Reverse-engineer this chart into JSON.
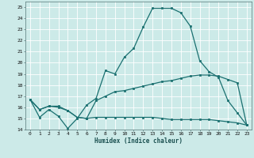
{
  "title": "",
  "xlabel": "Humidex (Indice chaleur)",
  "ylabel": "",
  "xlim": [
    -0.5,
    23.5
  ],
  "ylim": [
    14,
    25.5
  ],
  "yticks": [
    14,
    15,
    16,
    17,
    18,
    19,
    20,
    21,
    22,
    23,
    24,
    25
  ],
  "xticks": [
    0,
    1,
    2,
    3,
    4,
    5,
    6,
    7,
    8,
    9,
    10,
    11,
    12,
    13,
    14,
    15,
    16,
    17,
    18,
    19,
    20,
    21,
    22,
    23
  ],
  "bg_color": "#cceae8",
  "grid_color": "#ffffff",
  "line_color": "#1a7070",
  "line1": [
    16.7,
    15.1,
    15.8,
    15.2,
    14.1,
    15.0,
    16.2,
    16.8,
    19.3,
    19.0,
    20.5,
    21.3,
    23.2,
    24.9,
    24.9,
    24.9,
    24.5,
    23.3,
    20.2,
    19.2,
    18.7,
    16.6,
    15.5,
    14.4
  ],
  "line2": [
    16.7,
    15.8,
    16.1,
    16.1,
    15.7,
    15.1,
    15.0,
    16.6,
    17.0,
    17.4,
    17.5,
    17.7,
    17.9,
    18.1,
    18.3,
    18.4,
    18.6,
    18.8,
    18.9,
    18.9,
    18.8,
    18.5,
    18.2,
    14.4
  ],
  "line3": [
    16.7,
    15.8,
    16.1,
    16.0,
    15.7,
    15.1,
    15.0,
    15.1,
    15.1,
    15.1,
    15.1,
    15.1,
    15.1,
    15.1,
    15.0,
    14.9,
    14.9,
    14.9,
    14.9,
    14.9,
    14.8,
    14.7,
    14.6,
    14.4
  ]
}
